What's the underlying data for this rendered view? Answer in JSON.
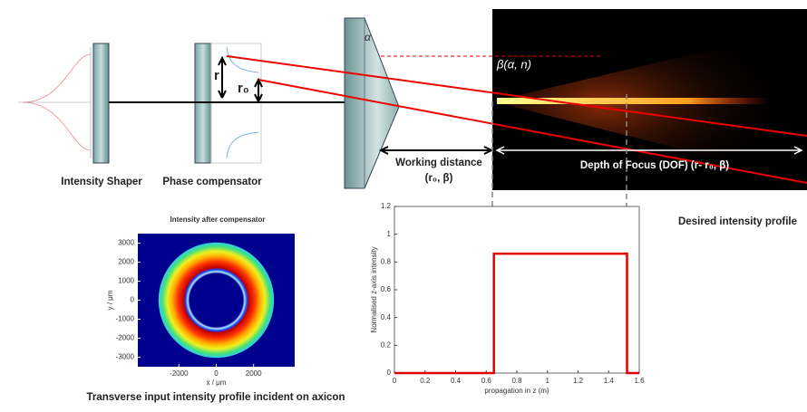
{
  "optics": {
    "intensity_shaper": "Intensity Shaper",
    "phase_compensator": "Phase compensator",
    "r": "r",
    "r0": "r₀",
    "axicon_angle": "α",
    "beam_angle": "β(α, n)",
    "working_distance": [
      "Working distance",
      "(r₀, β)"
    ],
    "dof": "Depth of Focus (DOF) (r- r₀, β)"
  },
  "profile": {
    "title": "Desired intensity profile",
    "x_label": "propagation in z (m)",
    "y_label": "Normalised z-axis intensity",
    "xlim": [
      0,
      1.6
    ],
    "xticks": [
      0,
      0.2,
      0.4,
      0.6,
      0.8,
      1,
      1.2,
      1.4,
      1.6
    ],
    "ylim": [
      0,
      1.2
    ],
    "yticks": [
      0,
      0.2,
      0.4,
      0.6,
      0.8,
      1,
      1.2
    ],
    "x": [
      0,
      0.65,
      0.65,
      1.52,
      1.52,
      1.6
    ],
    "values": [
      0,
      0,
      0.86,
      0.86,
      0,
      0
    ],
    "color": "#e00000"
  },
  "transverse": {
    "caption": "Transverse input intensity profile incident on axicon",
    "title": "Intensity after compensator",
    "x_label": "x / μm",
    "y_label": "y / μm",
    "xlim": [
      -4200,
      4200
    ],
    "ylim": [
      -3500,
      3500
    ],
    "xticks": [
      -2000,
      0,
      2000
    ],
    "yticks": [
      -3000,
      -2000,
      -1000,
      0,
      1000,
      2000,
      3000
    ]
  }
}
